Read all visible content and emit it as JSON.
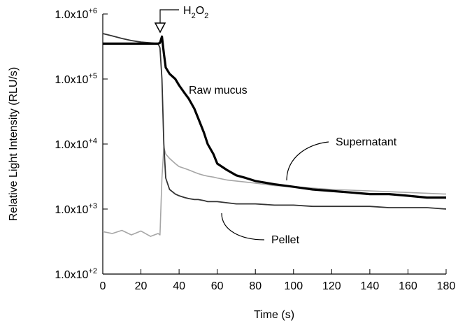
{
  "chart_data": {
    "type": "line",
    "x_label": "Time (s)",
    "y_label": "Relative Light Intensity (RLU/s)",
    "annotation": "H2O2",
    "log_y": true,
    "x": [
      0,
      5,
      10,
      15,
      20,
      25,
      29,
      30,
      31,
      32,
      33,
      35,
      38,
      40,
      43,
      45,
      48,
      50,
      53,
      55,
      58,
      60,
      65,
      70,
      75,
      80,
      90,
      100,
      110,
      120,
      130,
      140,
      150,
      160,
      170,
      180
    ],
    "series": [
      {
        "name": "Supernatant",
        "color": "#a6a6a6",
        "values": [
          450,
          420,
          470,
          400,
          460,
          380,
          420,
          400,
          3000,
          9000,
          7000,
          6000,
          5000,
          4500,
          4200,
          4000,
          3700,
          3500,
          3300,
          3200,
          3100,
          3000,
          2800,
          2700,
          2600,
          2500,
          2300,
          2200,
          2100,
          2000,
          1950,
          1900,
          1850,
          1800,
          1750,
          1700
        ]
      },
      {
        "name": "Pellet",
        "color": "#333333",
        "values": [
          500000,
          460000,
          420000,
          390000,
          370000,
          360000,
          350000,
          300000,
          100000,
          10000,
          3000,
          2000,
          1700,
          1600,
          1500,
          1450,
          1400,
          1400,
          1350,
          1300,
          1300,
          1300,
          1250,
          1200,
          1200,
          1200,
          1150,
          1150,
          1100,
          1100,
          1100,
          1100,
          1050,
          1050,
          1050,
          1000
        ]
      },
      {
        "name": "Raw mucus",
        "color": "#000000",
        "values": [
          350000,
          350000,
          350000,
          350000,
          350000,
          350000,
          350000,
          360000,
          450000,
          250000,
          150000,
          120000,
          100000,
          80000,
          60000,
          50000,
          35000,
          25000,
          15000,
          10000,
          7000,
          5000,
          4000,
          3300,
          3000,
          2700,
          2400,
          2200,
          2000,
          1900,
          1800,
          1700,
          1700,
          1600,
          1500,
          1500
        ]
      }
    ],
    "xlim": [
      0,
      180
    ],
    "xticks": [
      0,
      20,
      40,
      60,
      80,
      100,
      120,
      140,
      160,
      180
    ],
    "ylim": [
      100,
      1000000
    ],
    "yticks": [
      {
        "value": 100,
        "label": "1.0x10+2"
      },
      {
        "value": 1000,
        "label": "1.0x10+3"
      },
      {
        "value": 10000,
        "label": "1.0x10+4"
      },
      {
        "value": 100000,
        "label": "1.0x10+5"
      },
      {
        "value": 1000000,
        "label": "1.0x10+6"
      }
    ]
  }
}
